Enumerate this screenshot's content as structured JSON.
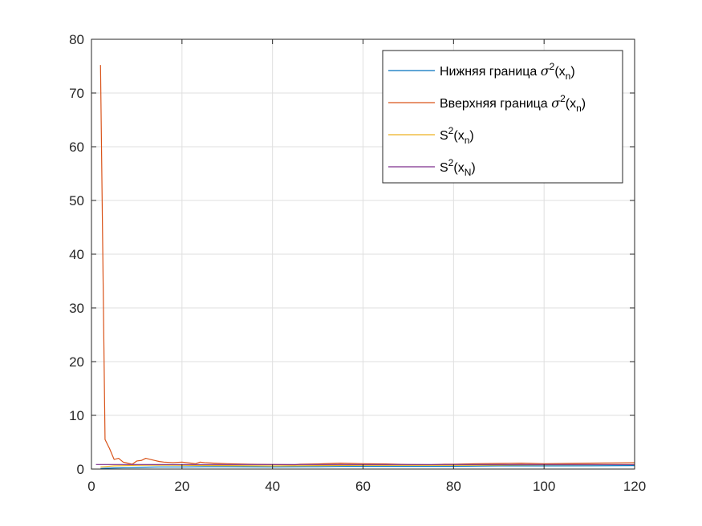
{
  "chart_data": {
    "type": "line",
    "title": "",
    "xlabel": "",
    "ylabel": "",
    "xlim": [
      0,
      120
    ],
    "ylim": [
      0,
      80
    ],
    "xticks": [
      0,
      20,
      40,
      60,
      80,
      100,
      120
    ],
    "yticks": [
      0,
      10,
      20,
      30,
      40,
      50,
      60,
      70,
      80
    ],
    "xtick_labels": [
      "0",
      "20",
      "40",
      "60",
      "80",
      "100",
      "120"
    ],
    "ytick_labels": [
      "0",
      "10",
      "20",
      "30",
      "40",
      "50",
      "60",
      "70",
      "80"
    ],
    "grid": true,
    "legend_position": "top-right",
    "series": [
      {
        "name": "Нижняя граница σ²(xn)",
        "label": {
          "text": "Нижняя граница ",
          "sym": "σ",
          "sup": "2",
          "paren_open": "(x",
          "sub": "n",
          "paren_close": ")"
        },
        "color": "#0072BD",
        "x": [
          2,
          3,
          5,
          8,
          10,
          12,
          15,
          20,
          25,
          30,
          40,
          50,
          55,
          60,
          70,
          80,
          85,
          90,
          100,
          110,
          120
        ],
        "y": [
          0.1,
          0.15,
          0.2,
          0.25,
          0.3,
          0.35,
          0.4,
          0.4,
          0.45,
          0.45,
          0.4,
          0.45,
          0.5,
          0.5,
          0.5,
          0.5,
          0.55,
          0.6,
          0.6,
          0.62,
          0.65
        ]
      },
      {
        "name": "Вверхняя граница σ²(xn)",
        "label": {
          "text": "Вверхняя граница  ",
          "sym": "σ",
          "sup": "2",
          "paren_open": "(x",
          "sub": "n",
          "paren_close": ")"
        },
        "color": "#D95319",
        "x": [
          2,
          3,
          4,
          5,
          6,
          7,
          8,
          9,
          10,
          11,
          12,
          13,
          14,
          15,
          16,
          18,
          20,
          22,
          23,
          24,
          25,
          27,
          30,
          35,
          40,
          45,
          46,
          50,
          55,
          60,
          65,
          70,
          75,
          78,
          80,
          85,
          90,
          95,
          100,
          105,
          110,
          115,
          120
        ],
        "y": [
          75.2,
          5.5,
          3.8,
          1.8,
          2.0,
          1.3,
          1.1,
          0.9,
          1.5,
          1.6,
          2.0,
          1.8,
          1.6,
          1.4,
          1.3,
          1.2,
          1.3,
          1.1,
          1.0,
          1.3,
          1.2,
          1.1,
          1.0,
          0.9,
          0.85,
          0.8,
          0.9,
          0.95,
          1.1,
          1.0,
          0.95,
          0.85,
          0.8,
          0.9,
          0.9,
          1.0,
          1.05,
          1.1,
          1.0,
          1.05,
          1.1,
          1.15,
          1.2
        ]
      },
      {
        "name": "S²(xn)",
        "label": {
          "text": "S",
          "sym": "",
          "sup": "2",
          "paren_open": "(x",
          "sub": "n",
          "paren_close": ")"
        },
        "color": "#EDB120",
        "x": [
          2,
          5,
          10,
          15,
          20,
          30,
          40,
          50,
          60,
          70,
          80,
          90,
          100,
          110,
          120
        ],
        "y": [
          0.4,
          0.6,
          0.7,
          0.75,
          0.7,
          0.65,
          0.6,
          0.65,
          0.7,
          0.7,
          0.7,
          0.75,
          0.8,
          0.82,
          0.85
        ]
      },
      {
        "name": "S²(xN)",
        "label": {
          "text": "S",
          "sym": "",
          "sup": "2",
          "paren_open": "(x",
          "sub": "N",
          "paren_close": ")"
        },
        "color": "#7E2F8E",
        "x": [
          1,
          120
        ],
        "y": [
          0.85,
          0.85
        ]
      }
    ]
  }
}
